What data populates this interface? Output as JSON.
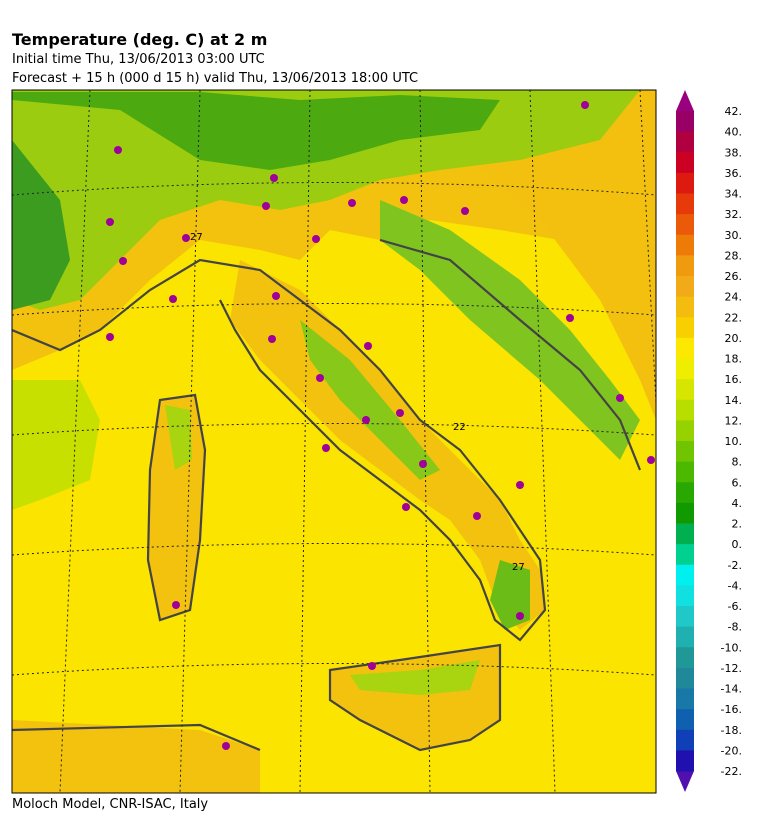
{
  "header": {
    "title": "Temperature (deg. C) at 2 m",
    "initial_time": "Initial time  Thu, 13/06/2013  03:00 UTC",
    "forecast": "Forecast  +  15 h  (000 d 15 h)  valid Thu, 13/06/2013 18:00 UTC"
  },
  "map": {
    "contour_labels": [
      "27",
      "22",
      "27"
    ]
  },
  "colorbar": {
    "labels": [
      "42.",
      "40.",
      "38.",
      "36.",
      "34.",
      "32.",
      "30.",
      "28.",
      "26.",
      "24.",
      "22.",
      "20.",
      "18.",
      "16.",
      "14.",
      "12.",
      "10.",
      "8.",
      "6.",
      "4.",
      "2.",
      "0.",
      "-2.",
      "-4.",
      "-6.",
      "-8.",
      "-10.",
      "-12.",
      "-14.",
      "-16.",
      "-18.",
      "-20.",
      "-22."
    ],
    "colors": [
      "#990066",
      "#b00040",
      "#cc0022",
      "#dd1a10",
      "#e63a0a",
      "#ea5a08",
      "#ee7a08",
      "#f09a10",
      "#f2aa18",
      "#f5bc10",
      "#f8d000",
      "#fce800",
      "#f0ee00",
      "#d6e600",
      "#b8de00",
      "#96d200",
      "#70c400",
      "#4cb800",
      "#28a800",
      "#109a00",
      "#00b050",
      "#00d090",
      "#00f0f0",
      "#10e0e0",
      "#20c8c8",
      "#20b0b0",
      "#209898",
      "#208898",
      "#1878a8",
      "#1060b0",
      "#1040b8",
      "#2010b0"
    ],
    "over_color": "#990080",
    "under_color": "#5010b0"
  },
  "footer": "Moloch Model, CNR-ISAC, Italy"
}
